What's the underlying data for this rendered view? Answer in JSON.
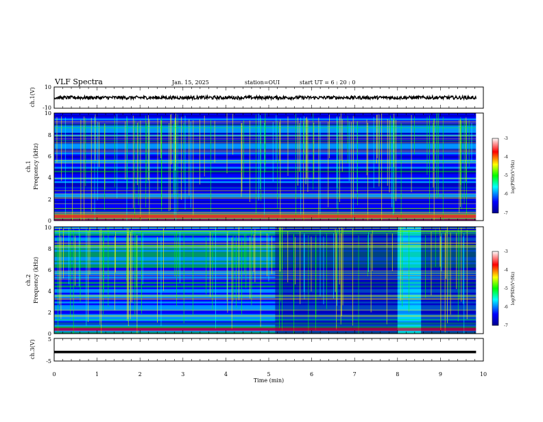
{
  "chart_data": {
    "type": "heatmap",
    "header": {
      "title": "VLF Spectra",
      "date": "Jan. 15, 2025",
      "station": "station=OUI",
      "start_ut": "start UT =   6 : 20 : 0"
    },
    "x_axis": {
      "label": "Time (min)",
      "range": [
        0,
        10
      ],
      "ticks": [
        "0",
        "1",
        "2",
        "3",
        "4",
        "5",
        "6",
        "7",
        "8",
        "9",
        "10"
      ],
      "data_end": 9.83
    },
    "panels": {
      "ch1_waveform": {
        "label": "ch.1(V)",
        "ylim": [
          -10,
          10
        ],
        "tick_labels": [
          "10",
          "-10"
        ]
      },
      "ch1_spectrogram": {
        "label_ch": "ch.1",
        "label_freq": "Frequency (kHz)",
        "ylim": [
          0,
          10
        ],
        "tick_labels": [
          "0",
          "2",
          "4",
          "6",
          "8",
          "10"
        ]
      },
      "ch2_spectrogram": {
        "label_ch": "ch.2",
        "label_freq": "Frequency (kHz)",
        "ylim": [
          0,
          10
        ],
        "tick_labels": [
          "0",
          "2",
          "4",
          "6",
          "8",
          "10"
        ]
      },
      "ch3_waveform": {
        "label": "ch.3(V)",
        "ylim": [
          -5,
          5
        ],
        "tick_labels": [
          "5",
          "-5"
        ]
      }
    },
    "colorbar": {
      "label": "log(PSD)(V²/Hz)",
      "range": [
        -7,
        -3
      ],
      "tick_labels": [
        "-3",
        "-4",
        "-5",
        "-6",
        "-7"
      ]
    },
    "colormap": [
      "#00008f",
      "#0000ff",
      "#00ffff",
      "#00ff00",
      "#ffff00",
      "#ff0000",
      "#ffffff"
    ]
  }
}
